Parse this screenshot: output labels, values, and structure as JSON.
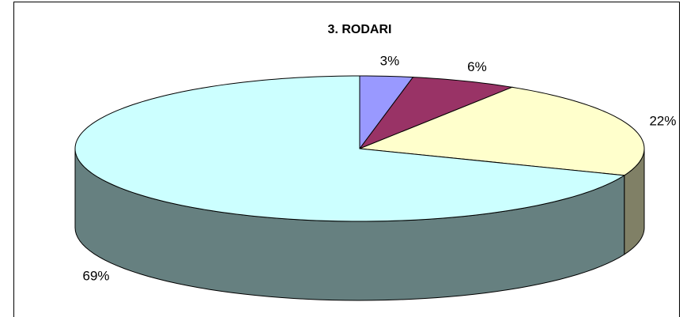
{
  "chart_data": {
    "type": "pie",
    "title": "3. RODARI",
    "values": [
      3,
      6,
      22,
      69
    ],
    "value_labels": [
      "3%",
      "6%",
      "22%",
      "69%"
    ],
    "colors": [
      "#9999ff",
      "#993366",
      "#ffffcc",
      "#ccffff"
    ],
    "side_colors": [
      "#4c4c80",
      "#4c1933",
      "#808066",
      "#668080"
    ]
  }
}
